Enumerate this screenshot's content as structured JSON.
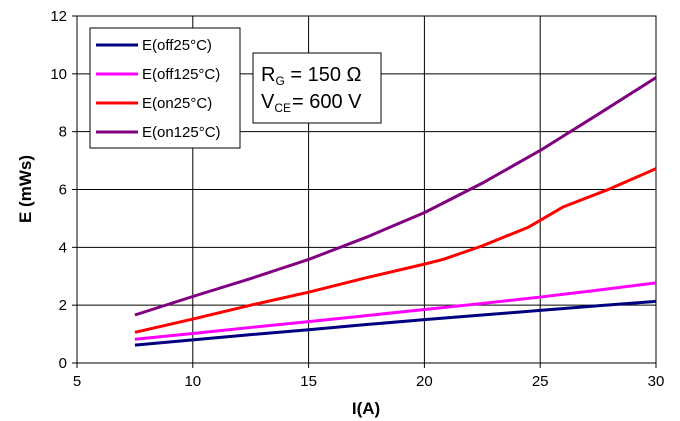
{
  "chart_data": {
    "type": "line",
    "xlabel_main": "I",
    "xlabel_unit": "(A)",
    "ylabel": "E (mWs)",
    "xlim": [
      5,
      30
    ],
    "ylim": [
      0,
      12
    ],
    "xticks": [
      5,
      10,
      15,
      20,
      25,
      30
    ],
    "yticks": [
      0,
      2,
      4,
      6,
      8,
      10,
      12
    ],
    "grid": true,
    "legend_position": "top-left",
    "series": [
      {
        "name": "E(off25°C)",
        "color": "#000080",
        "x": [
          7.5,
          10,
          12.5,
          15,
          17.5,
          20,
          22.5,
          25,
          27.5,
          30
        ],
        "y": [
          0.62,
          0.8,
          0.98,
          1.15,
          1.33,
          1.5,
          1.66,
          1.82,
          1.98,
          2.13
        ]
      },
      {
        "name": "E(off125°C)",
        "color": "#ff00ff",
        "x": [
          7.5,
          10,
          12.5,
          15,
          17.5,
          20,
          22.5,
          25,
          27.5,
          30
        ],
        "y": [
          0.82,
          1.02,
          1.23,
          1.43,
          1.64,
          1.85,
          2.06,
          2.28,
          2.52,
          2.77
        ]
      },
      {
        "name": "E(on25°C)",
        "color": "#ff0000",
        "x": [
          7.5,
          10,
          12.5,
          15,
          17.5,
          20,
          20.8,
          22.5,
          24.5,
          26,
          28,
          30
        ],
        "y": [
          1.06,
          1.52,
          2.0,
          2.45,
          2.95,
          3.42,
          3.58,
          4.05,
          4.7,
          5.4,
          6.02,
          6.72
        ]
      },
      {
        "name": "E(on125°C)",
        "color": "#800080",
        "x": [
          7.5,
          10,
          12.5,
          15,
          17.5,
          20,
          22.5,
          25,
          27.5,
          30
        ],
        "y": [
          1.66,
          2.3,
          2.92,
          3.58,
          4.35,
          5.2,
          6.22,
          7.35,
          8.6,
          9.87
        ]
      }
    ],
    "annotation": {
      "line1_main": "R",
      "line1_sub": "G",
      "line1_rest": " = 150 Ω",
      "line2_main": "V",
      "line2_sub": "CE",
      "line2_rest": "= 600 V"
    }
  }
}
